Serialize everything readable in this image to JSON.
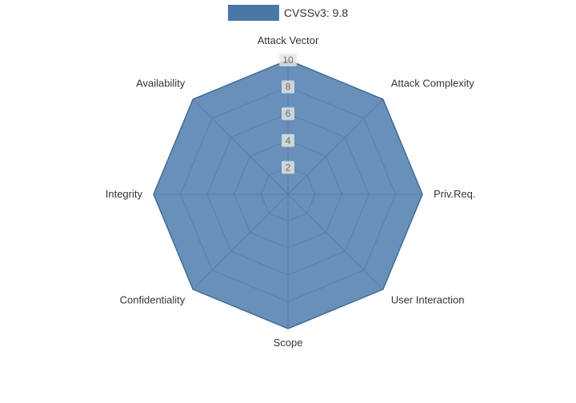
{
  "legend": {
    "label": "CVSSv3: 9.8"
  },
  "chart_data": {
    "type": "radar",
    "title": "",
    "categories": [
      "Attack Vector",
      "Attack Complexity",
      "Priv.Req.",
      "User Interaction",
      "Scope",
      "Confidentiality",
      "Integrity",
      "Availability"
    ],
    "series": [
      {
        "name": "CVSSv3: 9.8",
        "values": [
          10,
          10,
          10,
          10,
          10,
          10,
          10,
          10
        ]
      }
    ],
    "ticks": [
      2,
      4,
      6,
      8,
      10
    ],
    "max": 10,
    "legend_position": "top",
    "grid": "on",
    "colors": {
      "area": "#4878a8",
      "area_opacity": 0.82,
      "line": "#3d6d9e",
      "grid": "#999999",
      "tick_text": "#6e6e6e",
      "tick_bg": "#e6e6e6",
      "label": "#333333"
    }
  }
}
